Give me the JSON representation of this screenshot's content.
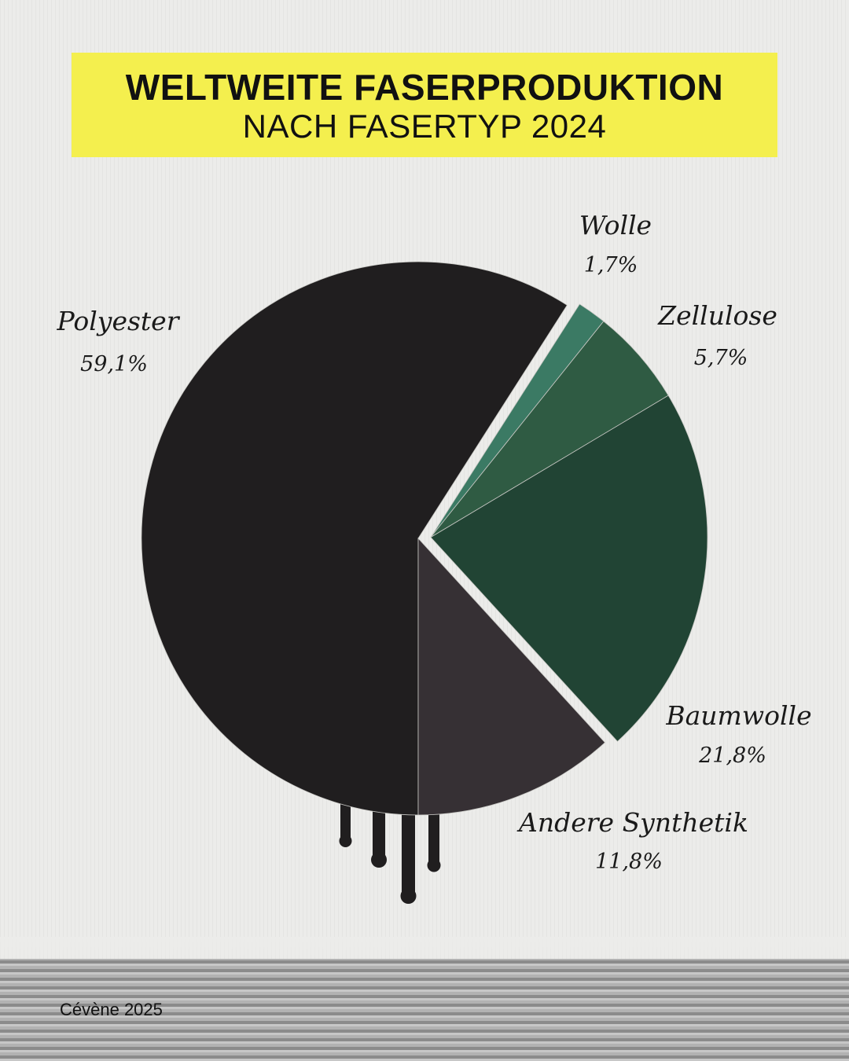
{
  "header": {
    "title": "WELTWEITE FASERPRODUKTION",
    "subtitle": "NACH FASERTYP 2024"
  },
  "chart_data": {
    "type": "pie",
    "title": "WELTWEITE FASERPRODUKTION",
    "subtitle": "NACH FASERTYP 2024",
    "unit": "%",
    "slices": [
      {
        "name": "Polyester",
        "value": 59.1,
        "display": "59,1%",
        "color": "#201e1f",
        "exploded": false
      },
      {
        "name": "Wolle",
        "value": 1.7,
        "display": "1,7%",
        "color": "#3b7a64",
        "exploded": true
      },
      {
        "name": "Zellulose",
        "value": 5.7,
        "display": "5,7%",
        "color": "#2f5b43",
        "exploded": true
      },
      {
        "name": "Baumwolle",
        "value": 21.8,
        "display": "21,8%",
        "color": "#214434",
        "exploded": true
      },
      {
        "name": "Andere Synthetik",
        "value": 11.8,
        "display": "11,8%",
        "color": "#363034",
        "exploded": false
      }
    ],
    "legend": "none"
  },
  "footer": {
    "credit": "Cévène 2025"
  }
}
